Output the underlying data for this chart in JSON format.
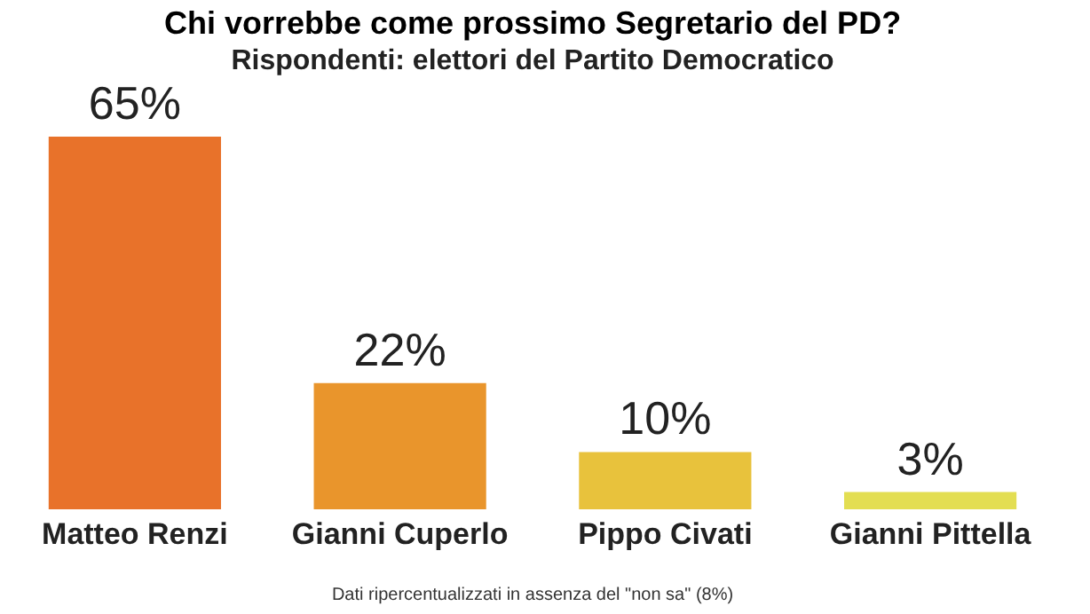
{
  "chart_data": {
    "type": "bar",
    "title": "Chi vorrebbe come prossimo Segretario del PD?",
    "subtitle": "Rispondenti: elettori del Partito Democratico",
    "categories": [
      "Matteo Renzi",
      "Gianni Cuperlo",
      "Pippo Civati",
      "Gianni Pittella"
    ],
    "values": [
      65,
      22,
      10,
      3
    ],
    "colors": [
      "#e8722a",
      "#e9952c",
      "#e8c23c",
      "#e3de52"
    ],
    "value_labels": [
      "65%",
      "22%",
      "10%",
      "3%"
    ],
    "annotations": [
      "Dati ripercentualizzati in assenza del \"non sa\" (8%)"
    ]
  }
}
